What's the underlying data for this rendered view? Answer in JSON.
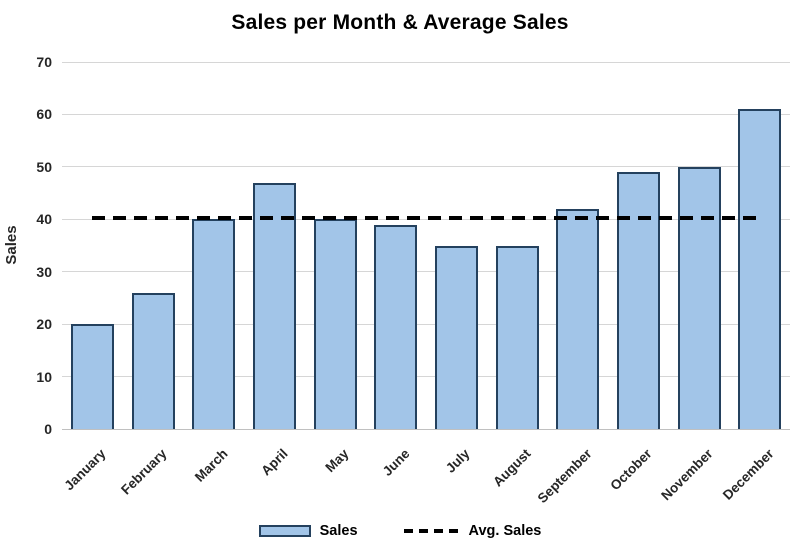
{
  "chart_data": {
    "type": "bar",
    "title": "Sales per Month & Average Sales",
    "xlabel": "",
    "ylabel": "Sales",
    "categories": [
      "January",
      "February",
      "March",
      "April",
      "May",
      "June",
      "July",
      "August",
      "September",
      "October",
      "November",
      "December"
    ],
    "series": [
      {
        "name": "Sales",
        "type": "bar",
        "values": [
          20,
          26,
          40,
          47,
          40,
          39,
          35,
          35,
          42,
          49,
          50,
          61
        ]
      },
      {
        "name": "Avg. Sales",
        "type": "line",
        "style": "dashed",
        "value": 40.33
      }
    ],
    "ylim": [
      0,
      70
    ],
    "yticks": [
      0,
      10,
      20,
      30,
      40,
      50,
      60,
      70
    ],
    "grid": true,
    "legend_position": "bottom",
    "colors": {
      "bar_fill": "#A2C5E8",
      "bar_border": "#24415E",
      "avg_line": "#000000",
      "gridline": "#D6D6D6",
      "axis_line": "#C0C0C0",
      "title": "#000000",
      "tick_label": "#262626"
    }
  }
}
